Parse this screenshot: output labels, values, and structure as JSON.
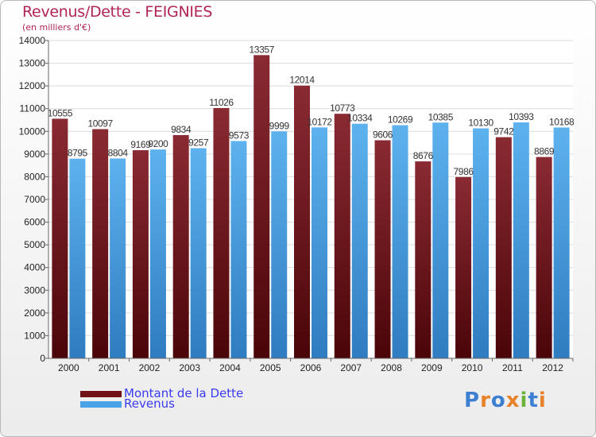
{
  "title": "Revenus/Dette - FEIGNIES",
  "subtitle": "(en milliers d'€)",
  "legend": [
    {
      "label": "Montant de la Dette",
      "color": "#6e1016"
    },
    {
      "label": "Revenus",
      "color": "#4aa3e6"
    }
  ],
  "logo": {
    "text": "Proxiti",
    "colors": [
      "#3d7fd0",
      "#e8822a",
      "#3d7fd0",
      "#e8822a",
      "#6bb33a",
      "#3d7fd0",
      "#e8822a"
    ]
  },
  "chart_data": {
    "type": "bar",
    "categories": [
      "2000",
      "2001",
      "2002",
      "2003",
      "2004",
      "2005",
      "2006",
      "2007",
      "2008",
      "2009",
      "2010",
      "2011",
      "2012"
    ],
    "series": [
      {
        "name": "Montant de la Dette",
        "color": "#6e1016",
        "values": [
          10555,
          10097,
          9169,
          9834,
          11026,
          13357,
          12014,
          10773,
          9606,
          8676,
          7986,
          9742,
          8869
        ]
      },
      {
        "name": "Revenus",
        "color": "#4aa3e6",
        "values": [
          8795,
          8804,
          9200,
          9257,
          9573,
          9999,
          10172,
          10334,
          10269,
          10385,
          10130,
          10393,
          10168
        ]
      }
    ],
    "ylim": [
      0,
      14000
    ],
    "yticks": [
      0,
      1000,
      2000,
      3000,
      4000,
      5000,
      6000,
      7000,
      8000,
      9000,
      10000,
      11000,
      12000,
      13000,
      14000
    ],
    "grid": true,
    "legend_position": "bottom-left"
  }
}
